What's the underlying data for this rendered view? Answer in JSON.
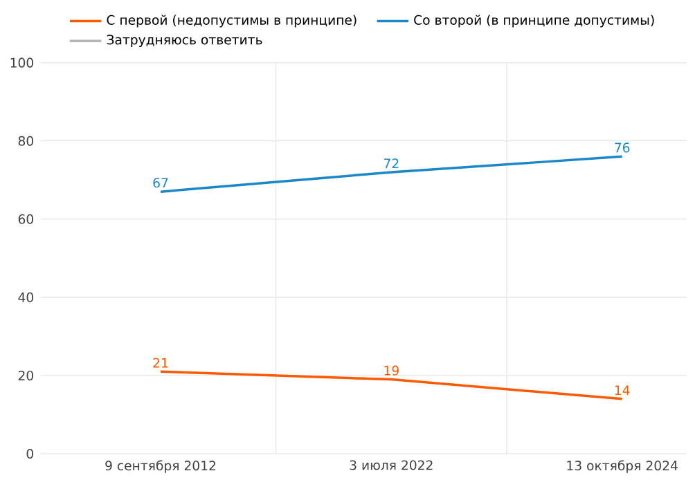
{
  "chart_data": {
    "type": "line",
    "categories": [
      "9 сентября 2012",
      "3 июля 2022",
      "13 октября 2024"
    ],
    "series": [
      {
        "name": "С первой (недопустимы в принципе)",
        "color": "#ff5a00",
        "values": [
          21,
          19,
          14
        ]
      },
      {
        "name": "Со второй (в принципе допустимы)",
        "color": "#1a87c9",
        "values": [
          67,
          72,
          76
        ]
      },
      {
        "name": "Затрудняюсь ответить",
        "color": "#b4b4b4",
        "values": [
          null,
          null,
          null
        ]
      }
    ],
    "ylim": [
      0,
      100
    ],
    "yticks": [
      0,
      20,
      40,
      60,
      80,
      100
    ],
    "grid": true,
    "legend": "top",
    "data_labels": true,
    "marker": "none",
    "line_style": "solid"
  }
}
